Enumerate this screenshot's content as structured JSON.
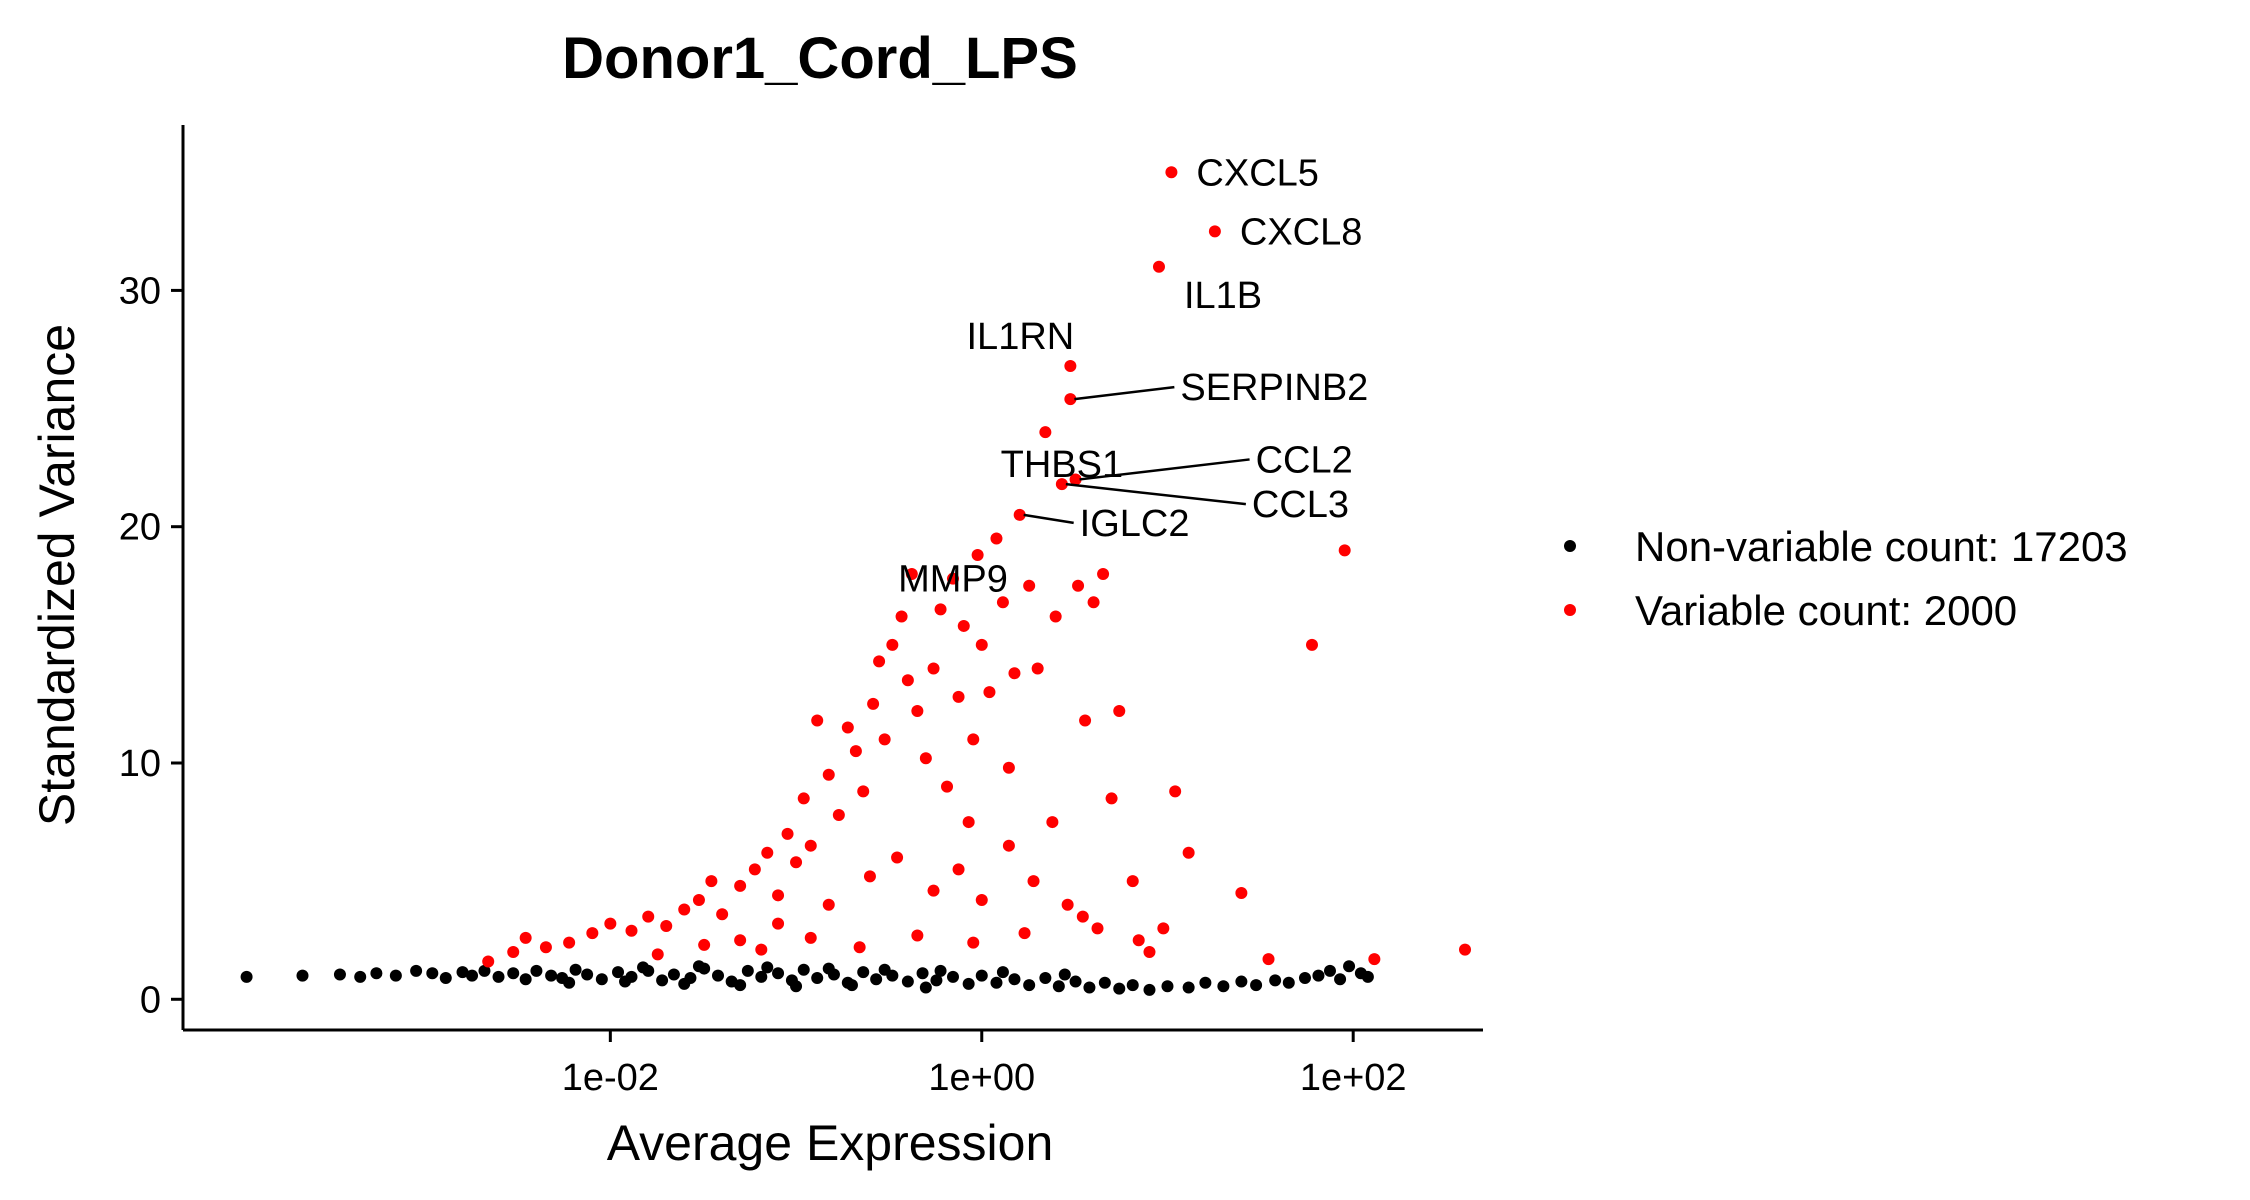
{
  "chart_data": {
    "type": "scatter",
    "title": "Donor1_Cord_LPS",
    "xlabel": "Average Expression",
    "ylabel": "Standardized Variance",
    "x_scale": "log10",
    "xlim": [
      5e-05,
      500
    ],
    "ylim": [
      -1.3,
      37
    ],
    "x_ticks": [
      {
        "value": 0.01,
        "label": "1e-02"
      },
      {
        "value": 1,
        "label": "1e+00"
      },
      {
        "value": 100,
        "label": "1e+02"
      }
    ],
    "y_ticks": [
      {
        "value": 0,
        "label": "0"
      },
      {
        "value": 10,
        "label": "10"
      },
      {
        "value": 20,
        "label": "20"
      },
      {
        "value": 30,
        "label": "30"
      }
    ],
    "grid": false,
    "legend_position": "right",
    "series": [
      {
        "name": "Non-variable count: 17203",
        "color": "#000000",
        "points": [
          [
            0.00011,
            0.95
          ],
          [
            0.00022,
            1.0
          ],
          [
            0.00035,
            1.05
          ],
          [
            0.00045,
            0.95
          ],
          [
            0.00055,
            1.1
          ],
          [
            0.0007,
            1.0
          ],
          [
            0.0009,
            1.2
          ],
          [
            0.0011,
            1.1
          ],
          [
            0.0013,
            0.9
          ],
          [
            0.0016,
            1.15
          ],
          [
            0.0018,
            1.0
          ],
          [
            0.0021,
            1.2
          ],
          [
            0.0025,
            0.95
          ],
          [
            0.003,
            1.1
          ],
          [
            0.0035,
            0.85
          ],
          [
            0.004,
            1.2
          ],
          [
            0.0048,
            1.0
          ],
          [
            0.0055,
            0.9
          ],
          [
            0.0065,
            1.25
          ],
          [
            0.0075,
            1.05
          ],
          [
            0.009,
            0.85
          ],
          [
            0.011,
            1.15
          ],
          [
            0.013,
            0.95
          ],
          [
            0.016,
            1.2
          ],
          [
            0.019,
            0.8
          ],
          [
            0.022,
            1.05
          ],
          [
            0.027,
            0.9
          ],
          [
            0.032,
            1.3
          ],
          [
            0.038,
            1.0
          ],
          [
            0.045,
            0.75
          ],
          [
            0.055,
            1.2
          ],
          [
            0.065,
            0.95
          ],
          [
            0.08,
            1.1
          ],
          [
            0.095,
            0.8
          ],
          [
            0.11,
            1.25
          ],
          [
            0.13,
            0.9
          ],
          [
            0.16,
            1.05
          ],
          [
            0.19,
            0.7
          ],
          [
            0.23,
            1.15
          ],
          [
            0.27,
            0.85
          ],
          [
            0.33,
            1.0
          ],
          [
            0.4,
            0.75
          ],
          [
            0.48,
            1.1
          ],
          [
            0.57,
            0.8
          ],
          [
            0.7,
            0.95
          ],
          [
            0.85,
            0.65
          ],
          [
            1.0,
            1.0
          ],
          [
            1.2,
            0.7
          ],
          [
            1.5,
            0.85
          ],
          [
            1.8,
            0.6
          ],
          [
            2.2,
            0.9
          ],
          [
            2.6,
            0.55
          ],
          [
            3.2,
            0.75
          ],
          [
            3.8,
            0.5
          ],
          [
            4.6,
            0.7
          ],
          [
            5.5,
            0.45
          ],
          [
            6.5,
            0.6
          ],
          [
            8.0,
            0.4
          ],
          [
            10,
            0.55
          ],
          [
            13,
            0.5
          ],
          [
            16,
            0.7
          ],
          [
            20,
            0.55
          ],
          [
            25,
            0.75
          ],
          [
            30,
            0.6
          ],
          [
            38,
            0.8
          ],
          [
            45,
            0.7
          ],
          [
            55,
            0.9
          ],
          [
            65,
            1.0
          ],
          [
            75,
            1.2
          ],
          [
            85,
            0.85
          ],
          [
            95,
            1.4
          ],
          [
            110,
            1.1
          ],
          [
            120,
            0.95
          ],
          [
            0.006,
            0.7
          ],
          [
            0.012,
            0.75
          ],
          [
            0.025,
            0.65
          ],
          [
            0.05,
            0.6
          ],
          [
            0.1,
            0.55
          ],
          [
            0.2,
            0.6
          ],
          [
            0.5,
            0.5
          ],
          [
            0.015,
            1.35
          ],
          [
            0.03,
            1.4
          ],
          [
            0.07,
            1.35
          ],
          [
            0.15,
            1.3
          ],
          [
            0.3,
            1.25
          ],
          [
            0.6,
            1.2
          ],
          [
            1.3,
            1.15
          ],
          [
            2.8,
            1.05
          ]
        ]
      },
      {
        "name": "Variable count: 2000",
        "color": "#ff0000",
        "points": [
          [
            0.0022,
            1.6
          ],
          [
            0.003,
            2.0
          ],
          [
            0.0035,
            2.6
          ],
          [
            0.0045,
            2.2
          ],
          [
            0.006,
            2.4
          ],
          [
            0.008,
            2.8
          ],
          [
            0.01,
            3.2
          ],
          [
            0.013,
            2.9
          ],
          [
            0.016,
            3.5
          ],
          [
            0.02,
            3.1
          ],
          [
            0.025,
            3.8
          ],
          [
            0.03,
            4.2
          ],
          [
            0.035,
            5.0
          ],
          [
            0.04,
            3.6
          ],
          [
            0.05,
            4.8
          ],
          [
            0.06,
            5.5
          ],
          [
            0.07,
            6.2
          ],
          [
            0.08,
            4.4
          ],
          [
            0.09,
            7.0
          ],
          [
            0.1,
            5.8
          ],
          [
            0.11,
            8.5
          ],
          [
            0.12,
            6.5
          ],
          [
            0.13,
            11.8
          ],
          [
            0.15,
            9.5
          ],
          [
            0.17,
            7.8
          ],
          [
            0.19,
            11.5
          ],
          [
            0.21,
            10.5
          ],
          [
            0.23,
            8.8
          ],
          [
            0.26,
            12.5
          ],
          [
            0.28,
            14.3
          ],
          [
            0.3,
            11.0
          ],
          [
            0.33,
            15.0
          ],
          [
            0.37,
            16.2
          ],
          [
            0.4,
            13.5
          ],
          [
            0.42,
            18.0
          ],
          [
            0.45,
            12.2
          ],
          [
            0.5,
            10.2
          ],
          [
            0.55,
            14.0
          ],
          [
            0.6,
            16.5
          ],
          [
            0.65,
            9.0
          ],
          [
            0.7,
            17.8
          ],
          [
            0.75,
            12.8
          ],
          [
            0.8,
            15.8
          ],
          [
            0.85,
            7.5
          ],
          [
            0.9,
            11.0
          ],
          [
            0.95,
            18.8
          ],
          [
            1.0,
            15.0
          ],
          [
            1.1,
            13.0
          ],
          [
            1.2,
            19.5
          ],
          [
            1.3,
            16.8
          ],
          [
            1.4,
            9.8
          ],
          [
            1.5,
            13.8
          ],
          [
            1.6,
            20.5
          ],
          [
            1.8,
            17.5
          ],
          [
            2.0,
            14.0
          ],
          [
            2.2,
            24.0
          ],
          [
            2.5,
            16.2
          ],
          [
            2.7,
            21.8
          ],
          [
            3.0,
            25.4
          ],
          [
            3.0,
            26.8
          ],
          [
            3.2,
            22.0
          ],
          [
            3.3,
            17.5
          ],
          [
            3.6,
            11.8
          ],
          [
            4.0,
            16.8
          ],
          [
            4.5,
            18.0
          ],
          [
            5.0,
            8.5
          ],
          [
            5.5,
            12.2
          ],
          [
            6.5,
            5.0
          ],
          [
            7.0,
            2.5
          ],
          [
            8.0,
            2.0
          ],
          [
            9.0,
            31.0
          ],
          [
            9.5,
            3.0
          ],
          [
            10.5,
            35.0
          ],
          [
            11.0,
            8.8
          ],
          [
            13.0,
            6.2
          ],
          [
            18.0,
            32.5
          ],
          [
            25.0,
            4.5
          ],
          [
            35.0,
            1.7
          ],
          [
            60.0,
            15.0
          ],
          [
            90.0,
            19.0
          ],
          [
            130.0,
            1.7
          ],
          [
            400.0,
            2.1
          ],
          [
            0.05,
            2.5
          ],
          [
            0.08,
            3.2
          ],
          [
            0.15,
            4.0
          ],
          [
            0.25,
            5.2
          ],
          [
            0.35,
            6.0
          ],
          [
            0.55,
            4.6
          ],
          [
            0.75,
            5.5
          ],
          [
            1.0,
            4.2
          ],
          [
            1.4,
            6.5
          ],
          [
            1.9,
            5.0
          ],
          [
            2.4,
            7.5
          ],
          [
            2.9,
            4.0
          ],
          [
            3.5,
            3.5
          ],
          [
            4.2,
            3.0
          ],
          [
            0.018,
            1.9
          ],
          [
            0.032,
            2.3
          ],
          [
            0.065,
            2.1
          ],
          [
            0.12,
            2.6
          ],
          [
            0.22,
            2.2
          ],
          [
            0.45,
            2.7
          ],
          [
            0.9,
            2.4
          ],
          [
            1.7,
            2.8
          ]
        ]
      }
    ],
    "labels": [
      {
        "text": "CXCL5",
        "x": 10.5,
        "y": 35.0
      },
      {
        "text": "CXCL8",
        "x": 18.0,
        "y": 32.5
      },
      {
        "text": "IL1B",
        "x": 9.0,
        "y": 31.0
      },
      {
        "text": "IL1RN",
        "x": 3.0,
        "y": 26.8
      },
      {
        "text": "SERPINB2",
        "x": 3.0,
        "y": 25.4
      },
      {
        "text": "THBS1",
        "x": 2.7,
        "y": 21.8
      },
      {
        "text": "CCL2",
        "x": 3.2,
        "y": 22.0
      },
      {
        "text": "CCL3",
        "x": 2.7,
        "y": 21.8
      },
      {
        "text": "IGLC2",
        "x": 1.6,
        "y": 20.5
      },
      {
        "text": "MMP9",
        "x": 0.7,
        "y": 17.8
      }
    ]
  }
}
